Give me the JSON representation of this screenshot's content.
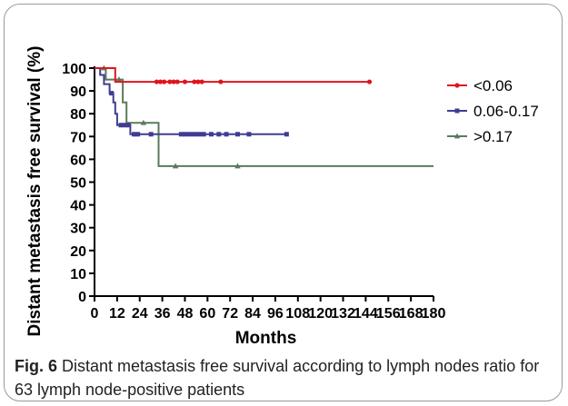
{
  "chart_data": {
    "type": "line",
    "subtype": "kaplan-meier survival curve",
    "xlabel": "Months",
    "ylabel": "Distant metastasis free survival (%)",
    "xlim": [
      0,
      180
    ],
    "ylim": [
      0,
      100
    ],
    "x_ticks": [
      0,
      12,
      24,
      36,
      48,
      60,
      72,
      84,
      96,
      108,
      120,
      132,
      144,
      156,
      168,
      180
    ],
    "y_ticks": [
      0,
      10,
      20,
      30,
      40,
      50,
      60,
      70,
      80,
      90,
      100
    ],
    "grid": false,
    "legend_position": "right",
    "series": [
      {
        "name": "<0.06",
        "color": "#e0141e",
        "marker": "circle",
        "steps": [
          [
            0,
            100
          ],
          [
            11,
            100
          ],
          [
            11,
            94
          ],
          [
            146,
            94
          ]
        ],
        "censored": [
          [
            33,
            94
          ],
          [
            35,
            94
          ],
          [
            37,
            94
          ],
          [
            40,
            94
          ],
          [
            42,
            94
          ],
          [
            44,
            94
          ],
          [
            48,
            94
          ],
          [
            53,
            94
          ],
          [
            55,
            94
          ],
          [
            57,
            94
          ],
          [
            67,
            94
          ],
          [
            146,
            94
          ]
        ]
      },
      {
        "name": "0.06-0.17",
        "color": "#3f3d92",
        "marker": "square",
        "steps": [
          [
            0,
            100
          ],
          [
            3,
            100
          ],
          [
            3,
            97
          ],
          [
            5,
            97
          ],
          [
            5,
            93
          ],
          [
            8,
            93
          ],
          [
            8,
            89
          ],
          [
            10,
            89
          ],
          [
            10,
            85
          ],
          [
            11,
            85
          ],
          [
            11,
            80
          ],
          [
            12,
            80
          ],
          [
            12,
            75
          ],
          [
            19,
            75
          ],
          [
            19,
            71
          ],
          [
            102,
            71
          ]
        ],
        "censored": [
          [
            9,
            89
          ],
          [
            14,
            75
          ],
          [
            16,
            75
          ],
          [
            18,
            75
          ],
          [
            21,
            71
          ],
          [
            23,
            71
          ],
          [
            30,
            71
          ],
          [
            46,
            71
          ],
          [
            48,
            71
          ],
          [
            50,
            71
          ],
          [
            52,
            71
          ],
          [
            54,
            71
          ],
          [
            56,
            71
          ],
          [
            58,
            71
          ],
          [
            62,
            71
          ],
          [
            66,
            71
          ],
          [
            70,
            71
          ],
          [
            76,
            71
          ],
          [
            82,
            71
          ],
          [
            102,
            71
          ]
        ]
      },
      {
        "name": ">0.17",
        "color": "#5b7a5b",
        "marker": "triangle",
        "steps": [
          [
            0,
            100
          ],
          [
            6,
            100
          ],
          [
            6,
            95
          ],
          [
            15,
            95
          ],
          [
            15,
            85
          ],
          [
            17,
            85
          ],
          [
            17,
            76
          ],
          [
            34,
            76
          ],
          [
            34,
            57
          ],
          [
            180,
            57
          ]
        ],
        "censored": [
          [
            5,
            100
          ],
          [
            13,
            95
          ],
          [
            26,
            76
          ],
          [
            43,
            57
          ],
          [
            76,
            57
          ]
        ]
      }
    ]
  },
  "caption": {
    "label": "Fig. 6",
    "text": " Distant metastasis free survival according to lymph nodes ratio for 63 lymph node-positive patients"
  }
}
